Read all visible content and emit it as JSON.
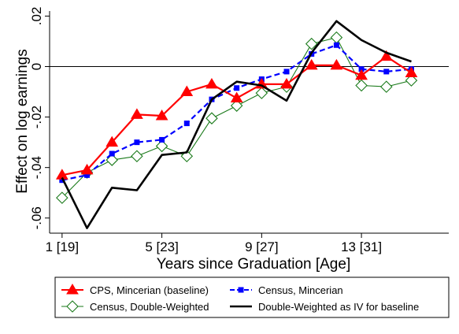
{
  "chart_data": {
    "type": "line",
    "title": "",
    "xlabel": "Years since Graduation [Age]",
    "ylabel": "Effect on log earnings",
    "xlim": [
      0.5,
      16.5
    ],
    "ylim": [
      -0.066,
      0.022
    ],
    "x_ticks": [
      {
        "value": 1,
        "label": "1 [19]"
      },
      {
        "value": 5,
        "label": "5 [23]"
      },
      {
        "value": 9,
        "label": "9 [27]"
      },
      {
        "value": 13,
        "label": "13 [31]"
      }
    ],
    "y_ticks": [
      {
        "value": -0.06,
        "label": "-.06"
      },
      {
        "value": -0.04,
        "label": "-.04"
      },
      {
        "value": -0.02,
        "label": "-.02"
      },
      {
        "value": 0,
        "label": "0"
      },
      {
        "value": 0.02,
        "label": ".02"
      }
    ],
    "reference_line": 0,
    "grid": false,
    "legend_position": "bottom",
    "x": [
      1,
      2,
      3,
      4,
      5,
      6,
      7,
      8,
      9,
      10,
      11,
      12,
      13,
      14,
      15
    ],
    "series": [
      {
        "name": "CPS, Mincerian (baseline)",
        "color": "#ff0000",
        "style": "solid",
        "marker": "triangle",
        "values": [
          -0.043,
          -0.041,
          -0.03,
          -0.019,
          -0.0195,
          -0.01,
          -0.007,
          -0.0125,
          -0.007,
          -0.007,
          0.0005,
          0.0005,
          -0.0035,
          0.004,
          -0.0025
        ]
      },
      {
        "name": "Census, Mincerian",
        "color": "#0000ff",
        "style": "dashed",
        "marker": "square",
        "values": [
          -0.045,
          -0.043,
          -0.0345,
          -0.03,
          -0.029,
          -0.0225,
          -0.013,
          -0.0085,
          -0.005,
          -0.002,
          0.005,
          0.0085,
          -0.001,
          -0.002,
          -0.001
        ]
      },
      {
        "name": "Census, Double-Weighted",
        "color": "#1a7a1a",
        "style": "solid",
        "marker": "diamond",
        "values": [
          -0.052,
          -0.042,
          -0.037,
          -0.0355,
          -0.0315,
          -0.0355,
          -0.0205,
          -0.0155,
          -0.0105,
          -0.008,
          0.009,
          0.0115,
          -0.0075,
          -0.008,
          -0.0055
        ]
      },
      {
        "name": "Double-Weighted as IV for baseline",
        "color": "#000000",
        "style": "solid",
        "marker": "none",
        "values": [
          -0.044,
          -0.064,
          -0.048,
          -0.049,
          -0.035,
          -0.034,
          -0.013,
          -0.006,
          -0.0075,
          -0.0135,
          0.0055,
          0.018,
          0.0105,
          0.0055,
          0.002
        ]
      }
    ]
  }
}
